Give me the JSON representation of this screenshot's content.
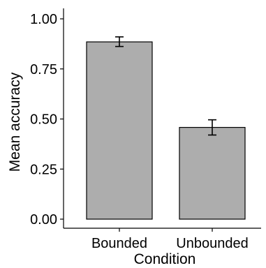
{
  "chart_data": {
    "type": "bar",
    "title": "",
    "xlabel": "Condition",
    "ylabel": "Mean accuracy",
    "categories": [
      "Bounded",
      "Unbounded"
    ],
    "values": [
      0.885,
      0.458
    ],
    "error_low": [
      0.862,
      0.42
    ],
    "error_high": [
      0.91,
      0.496
    ],
    "ylim": [
      0,
      1.0
    ],
    "yticks": [
      0,
      0.25,
      0.5,
      0.75,
      1.0
    ],
    "ytick_labels": [
      "0.00",
      "0.25",
      "0.50",
      "0.75",
      "1.00"
    ],
    "grid": false,
    "legend": "none",
    "colors": {
      "bar_fill": "#adadad",
      "bar_stroke": "#000000"
    }
  }
}
